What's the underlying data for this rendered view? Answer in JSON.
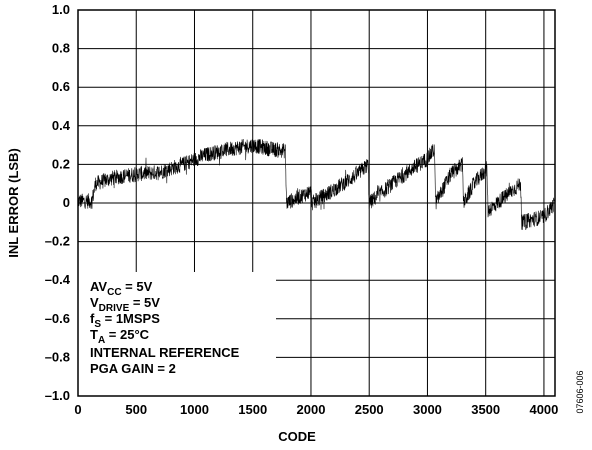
{
  "chart_data": {
    "type": "line",
    "xlabel": "CODE",
    "ylabel": "INL ERROR (LSB)",
    "xlim": [
      0,
      4095
    ],
    "ylim": [
      -1.0,
      1.0
    ],
    "x_ticks": [
      0,
      500,
      1000,
      1500,
      2000,
      2500,
      3000,
      3500,
      4000
    ],
    "x_tick_labels": [
      "0",
      "500",
      "1000",
      "1500",
      "2000",
      "2500",
      "3000",
      "3500",
      "4000"
    ],
    "y_ticks": [
      1.0,
      0.8,
      0.6,
      0.4,
      0.2,
      0,
      -0.2,
      -0.4,
      -0.6,
      -0.8,
      -1.0
    ],
    "y_tick_labels": [
      "1.0",
      "0.8",
      "0.6",
      "0.4",
      "0.2",
      "0",
      "–0.2",
      "–0.4",
      "–0.6",
      "–0.8",
      "–1.0"
    ],
    "grid": true,
    "line_color": "#000000",
    "series": [
      {
        "x": [
          0,
          120,
          150,
          300,
          500,
          700,
          900,
          1100,
          1300,
          1500,
          1650,
          1780,
          1790,
          2000,
          2010,
          2200,
          2300,
          2400,
          2490,
          2500,
          2700,
          2850,
          3000,
          3060,
          3070,
          3200,
          3300,
          3310,
          3400,
          3510,
          3520,
          3700,
          3800,
          3810,
          4000,
          4095
        ],
        "y": [
          0.01,
          0.01,
          0.1,
          0.13,
          0.15,
          0.16,
          0.2,
          0.25,
          0.28,
          0.3,
          0.28,
          0.27,
          0.0,
          0.06,
          0.0,
          0.07,
          0.11,
          0.15,
          0.2,
          0.0,
          0.1,
          0.17,
          0.23,
          0.28,
          0.0,
          0.15,
          0.2,
          0.0,
          0.1,
          0.18,
          -0.04,
          0.05,
          0.1,
          -0.1,
          -0.07,
          0.0
        ]
      }
    ],
    "annotations": {
      "line1": {
        "main": "AV",
        "sub": "CC",
        "rest": " = 5V"
      },
      "line2": {
        "main": "V",
        "sub": "DRIVE",
        "rest": " = 5V"
      },
      "line3": {
        "main": "f",
        "sub": "S",
        "rest": " = 1MSPS"
      },
      "line4": {
        "main": "T",
        "sub": "A",
        "rest": " = 25°C"
      },
      "line5": "INTERNAL REFERENCE",
      "line6": "PGA GAIN = 2"
    }
  },
  "figure_id": "07606-006"
}
